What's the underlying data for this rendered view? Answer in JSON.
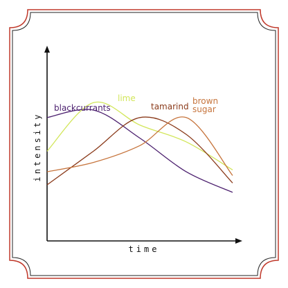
{
  "chart_data": {
    "type": "line",
    "xlabel": "time",
    "ylabel": "intensity",
    "x": [
      0,
      0.25,
      0.5,
      0.75,
      1.0
    ],
    "xlim": [
      0,
      1
    ],
    "ylim": [
      0,
      1
    ],
    "grid": false,
    "legend": "inline labels near curve peaks",
    "series": [
      {
        "name": "blackcurrants",
        "color": "#4b1f6e",
        "values": [
          0.66,
          0.7,
          0.55,
          0.37,
          0.26
        ]
      },
      {
        "name": "lime",
        "color": "#d2e65a",
        "values": [
          0.48,
          0.74,
          0.62,
          0.53,
          0.38
        ]
      },
      {
        "name": "tamarind",
        "color": "#8a3a1a",
        "values": [
          0.3,
          0.48,
          0.66,
          0.57,
          0.31
        ]
      },
      {
        "name": "brown sugar",
        "color": "#c6743c",
        "values": [
          0.37,
          0.42,
          0.51,
          0.66,
          0.35
        ]
      }
    ]
  },
  "frame": {
    "border_color": "#c0392b",
    "inner_border_color": "#222222"
  }
}
